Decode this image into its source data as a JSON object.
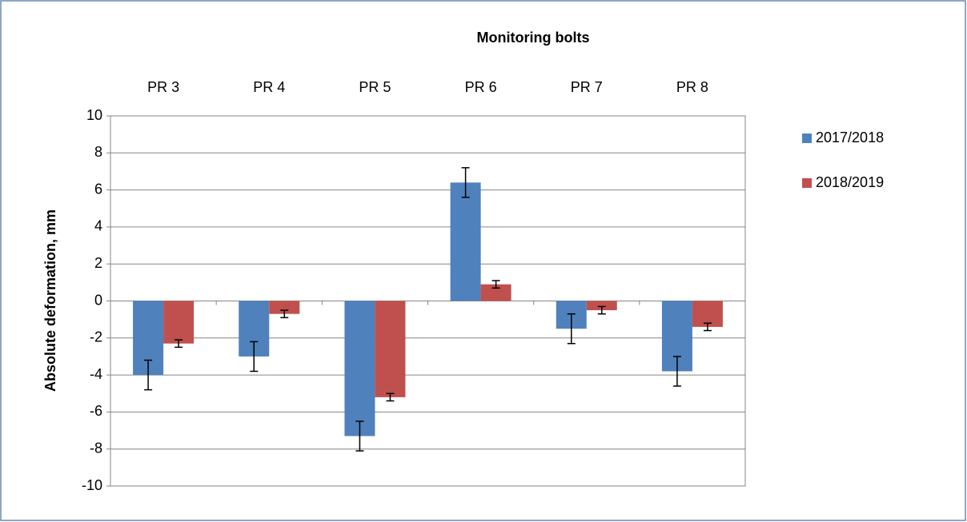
{
  "chart_data": {
    "type": "bar",
    "title": "Monitoring bolts",
    "ylabel": "Absolute deformation, mm",
    "categories": [
      "PR 3",
      "PR 4",
      "PR 5",
      "PR 6",
      "PR 7",
      "PR 8"
    ],
    "series": [
      {
        "name": "2017/2018",
        "color": "#4f81bd",
        "values": [
          -4.0,
          -3.0,
          -7.3,
          6.4,
          -1.5,
          -3.8
        ],
        "errors": [
          0.8,
          0.8,
          0.8,
          0.8,
          0.8,
          0.8
        ]
      },
      {
        "name": "2018/2019",
        "color": "#c0504d",
        "values": [
          -2.3,
          -0.7,
          -5.2,
          0.9,
          -0.5,
          -1.4
        ],
        "errors": [
          0.2,
          0.2,
          0.2,
          0.2,
          0.2,
          0.2
        ]
      }
    ],
    "ylim": [
      -10,
      10
    ],
    "yticks": [
      -10,
      -8,
      -6,
      -4,
      -2,
      0,
      2,
      4,
      6,
      8,
      10
    ],
    "grid": true,
    "legend": "right"
  }
}
